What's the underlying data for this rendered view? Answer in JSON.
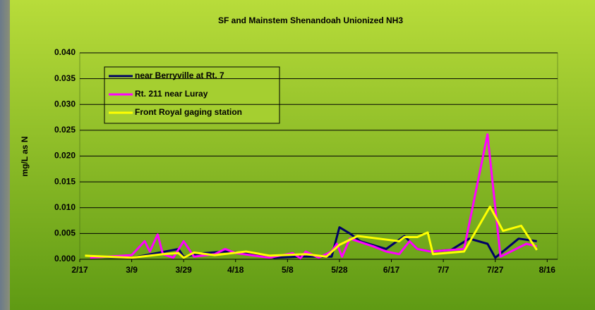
{
  "chart_data": {
    "type": "line",
    "title": "SF and Mainstem Shenandoah Unionized NH3",
    "y_label": "mg/L as N",
    "xlim": [
      "2/17",
      "8/20"
    ],
    "xticks": [
      "2/17",
      "3/9",
      "3/29",
      "4/18",
      "5/8",
      "5/28",
      "6/17",
      "7/7",
      "7/27",
      "8/16"
    ],
    "ylim": [
      0,
      0.04
    ],
    "yticks": [
      {
        "value": 0,
        "label": "0.000"
      },
      {
        "value": 0.005,
        "label": "0.005"
      },
      {
        "value": 0.01,
        "label": "0.010"
      },
      {
        "value": 0.015,
        "label": "0.015"
      },
      {
        "value": 0.02,
        "label": "0.020"
      },
      {
        "value": 0.025,
        "label": "0.025"
      },
      {
        "value": 0.03,
        "label": "0.030"
      },
      {
        "value": 0.035,
        "label": "0.035"
      },
      {
        "value": 0.04,
        "label": "0.040"
      }
    ],
    "grid": true,
    "legend": "upper left",
    "series": [
      {
        "name": "near Berryville at Rt. 7",
        "color": "#000066",
        "x": [
          "2/21",
          "3/9",
          "3/25",
          "3/27",
          "3/29",
          "4/6",
          "4/14",
          "4/26",
          "5/3",
          "5/13",
          "5/25",
          "5/28",
          "6/1",
          "6/5",
          "6/15",
          "6/22",
          "6/27",
          "7/2",
          "7/10",
          "7/17",
          "7/24",
          "7/27",
          "8/5",
          "8/12"
        ],
        "values": [
          0.0005,
          0.0003,
          0.0018,
          0.002,
          0.0005,
          0.0012,
          0.0015,
          0.001,
          0.0003,
          0.0005,
          0.0005,
          0.0062,
          0.005,
          0.0035,
          0.002,
          0.0045,
          0.002,
          0.0015,
          0.0018,
          0.004,
          0.003,
          0.0003,
          0.004,
          0.0035
        ]
      },
      {
        "name": "Rt. 211 near Luray",
        "color": "#ff00ff",
        "x": [
          "2/21",
          "3/9",
          "3/14",
          "3/16",
          "3/19",
          "3/21",
          "3/25",
          "3/29",
          "4/2",
          "4/10",
          "4/14",
          "4/18",
          "5/1",
          "5/10",
          "5/13",
          "5/15",
          "5/20",
          "5/25",
          "5/27",
          "5/29",
          "6/1",
          "6/10",
          "6/15",
          "6/20",
          "6/24",
          "6/27",
          "7/2",
          "7/15",
          "7/24",
          "7/29",
          "8/8",
          "8/12"
        ],
        "values": [
          0.0003,
          0.0008,
          0.0035,
          0.0015,
          0.0048,
          0.001,
          0.0003,
          0.0035,
          0.0005,
          0.001,
          0.002,
          0.0012,
          0.0003,
          0.0012,
          0.0002,
          0.0015,
          0.0003,
          0.0015,
          0.003,
          0.0005,
          0.004,
          0.0025,
          0.0015,
          0.001,
          0.0035,
          0.002,
          0.0015,
          0.002,
          0.0242,
          0.0005,
          0.003,
          0.0025
        ]
      },
      {
        "name": "Front Royal gaging station",
        "color": "#ffff00",
        "x": [
          "2/19",
          "3/9",
          "3/21",
          "3/27",
          "3/29",
          "4/2",
          "4/10",
          "4/22",
          "5/1",
          "5/15",
          "5/23",
          "5/28",
          "6/4",
          "6/20",
          "6/22",
          "6/27",
          "7/1",
          "7/3",
          "7/15",
          "7/25",
          "7/30",
          "8/6",
          "8/12"
        ],
        "values": [
          0.0007,
          0.0003,
          0.001,
          0.0012,
          0.0003,
          0.0013,
          0.0008,
          0.0015,
          0.0007,
          0.001,
          0.0005,
          0.0028,
          0.0045,
          0.0035,
          0.0043,
          0.0043,
          0.0052,
          0.001,
          0.0015,
          0.0102,
          0.0055,
          0.0065,
          0.0018
        ]
      }
    ]
  }
}
